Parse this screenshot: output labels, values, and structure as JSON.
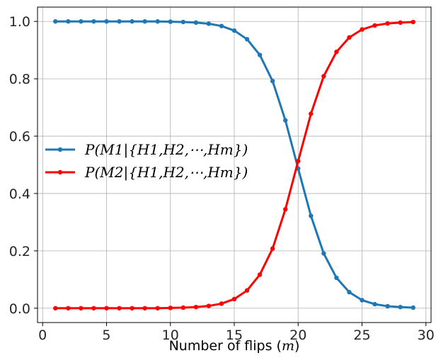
{
  "chart_data": {
    "type": "line",
    "xlabel": "Number of flips (m)",
    "ylabel": "",
    "title": "",
    "xlim": [
      -0.4,
      30.4
    ],
    "ylim": [
      -0.05,
      1.05
    ],
    "xticks": [
      0,
      5,
      10,
      15,
      20,
      25,
      30
    ],
    "yticks": [
      0.0,
      0.2,
      0.4,
      0.6,
      0.8,
      1.0
    ],
    "xtick_labels": [
      "0",
      "5",
      "10",
      "15",
      "20",
      "25",
      "30"
    ],
    "ytick_labels": [
      "0.0",
      "0.2",
      "0.4",
      "0.6",
      "0.8",
      "1.0"
    ],
    "grid": true,
    "legend_placement": "center-left",
    "x": [
      1,
      2,
      3,
      4,
      5,
      6,
      7,
      8,
      9,
      10,
      11,
      12,
      13,
      14,
      15,
      16,
      17,
      18,
      19,
      20,
      21,
      22,
      23,
      24,
      25,
      26,
      27,
      28,
      29
    ],
    "series": [
      {
        "name": "P(M1|{H1,H2,⋯,Hm})",
        "color": "#1f77b4",
        "values": [
          1.0,
          1.0,
          1.0,
          1.0,
          1.0,
          1.0,
          1.0,
          1.0,
          1.0,
          0.999,
          0.998,
          0.996,
          0.992,
          0.984,
          0.968,
          0.938,
          0.883,
          0.792,
          0.655,
          0.487,
          0.322,
          0.191,
          0.106,
          0.056,
          0.028,
          0.014,
          0.007,
          0.004,
          0.002
        ]
      },
      {
        "name": "P(M2|{H1,H2,⋯,Hm})",
        "color": "#ff0000",
        "values": [
          0.0,
          0.0,
          0.0,
          0.0,
          0.0,
          0.0,
          0.0,
          0.0,
          0.0,
          0.001,
          0.002,
          0.004,
          0.008,
          0.016,
          0.032,
          0.062,
          0.117,
          0.208,
          0.345,
          0.513,
          0.678,
          0.809,
          0.894,
          0.944,
          0.972,
          0.986,
          0.993,
          0.996,
          0.998
        ]
      }
    ]
  }
}
